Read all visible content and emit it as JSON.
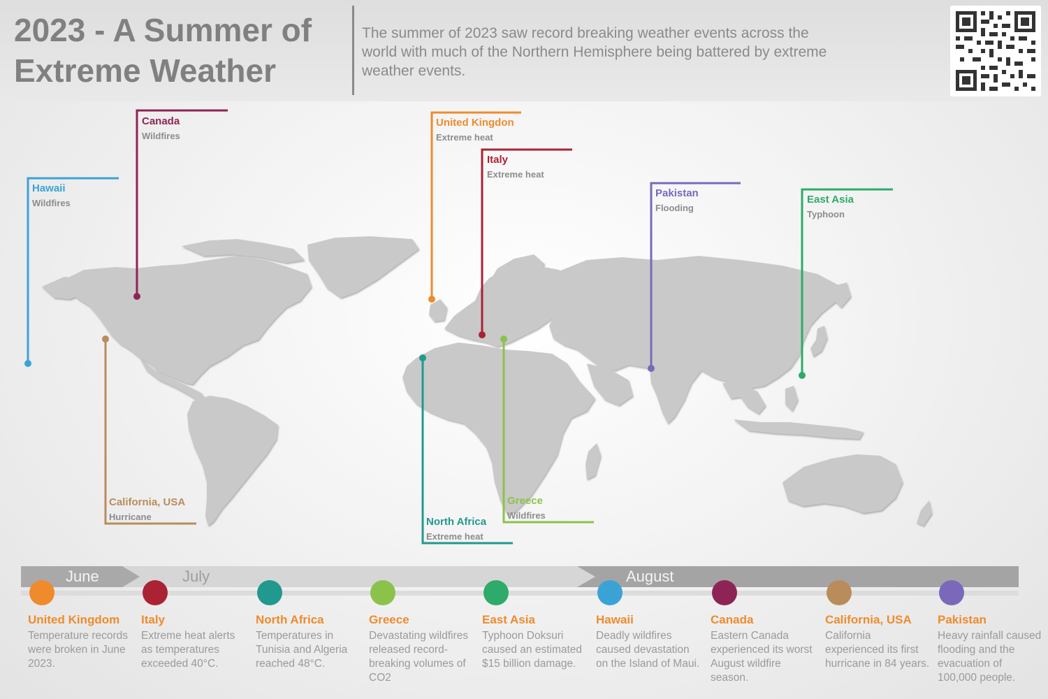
{
  "header": {
    "title": "2023 - A Summer of Extreme Weather",
    "description": "The summer of 2023 saw record breaking weather events across the world with much of the Northern Hemisphere being battered by extreme weather events.",
    "qr_icon": "qr-code-icon"
  },
  "map": {
    "land_color": "#c9c9c9",
    "callouts": [
      {
        "id": "hawaii",
        "title": "Hawaii",
        "subtitle": "Wildfires",
        "color": "#3aa3d6"
      },
      {
        "id": "canada",
        "title": "Canada",
        "subtitle": "Wildfires",
        "color": "#8e2456"
      },
      {
        "id": "uk",
        "title": "United Kingdon",
        "subtitle": "Extreme heat",
        "color": "#ef8b2c"
      },
      {
        "id": "italy",
        "title": "Italy",
        "subtitle": "Extreme heat",
        "color": "#aa2233"
      },
      {
        "id": "pakistan",
        "title": "Pakistan",
        "subtitle": "Flooding",
        "color": "#7b68bb"
      },
      {
        "id": "eastasia",
        "title": "East Asia",
        "subtitle": "Typhoon",
        "color": "#2eaa6a"
      },
      {
        "id": "california",
        "title": "California, USA",
        "subtitle": "Hurricane",
        "color": "#b98c5b"
      },
      {
        "id": "northafrica",
        "title": "North Africa",
        "subtitle": "Extreme heat",
        "color": "#21998e"
      },
      {
        "id": "greece",
        "title": "Greece",
        "subtitle": "Wildfires",
        "color": "#8bc34a"
      }
    ]
  },
  "timeline": {
    "months": [
      "June",
      "July",
      "August"
    ],
    "events": [
      {
        "title": "United Kingdom",
        "text": "Temperature records were broken in June 2023.",
        "color": "#ef8b2c"
      },
      {
        "title": "Italy",
        "text": "Extreme heat alerts as temperatures exceeded 40°C.",
        "color": "#aa2233"
      },
      {
        "title": "North Africa",
        "text": "Temperatures in Tunisia and Algeria reached 48°C.",
        "color": "#21998e"
      },
      {
        "title": "Greece",
        "text": "Devastating wildfires released record-breaking volumes of CO2",
        "color": "#8bc34a"
      },
      {
        "title": "East Asia",
        "text": "Typhoon Doksuri caused an estimated $15 billion damage.",
        "color": "#2eaa6a"
      },
      {
        "title": "Hawaii",
        "text": "Deadly wildfires caused devastation on the Island of Maui.",
        "color": "#3aa3d6"
      },
      {
        "title": "Canada",
        "text": "Eastern Canada experienced its worst August wildfire season.",
        "color": "#8e2456"
      },
      {
        "title": "California, USA",
        "text": "California experienced its first hurricane in 84 years.",
        "color": "#b98c5b"
      },
      {
        "title": "Pakistan",
        "text": "Heavy rainfall caused flooding and the evacuation of 100,000 people.",
        "color": "#7b68bb"
      }
    ]
  }
}
